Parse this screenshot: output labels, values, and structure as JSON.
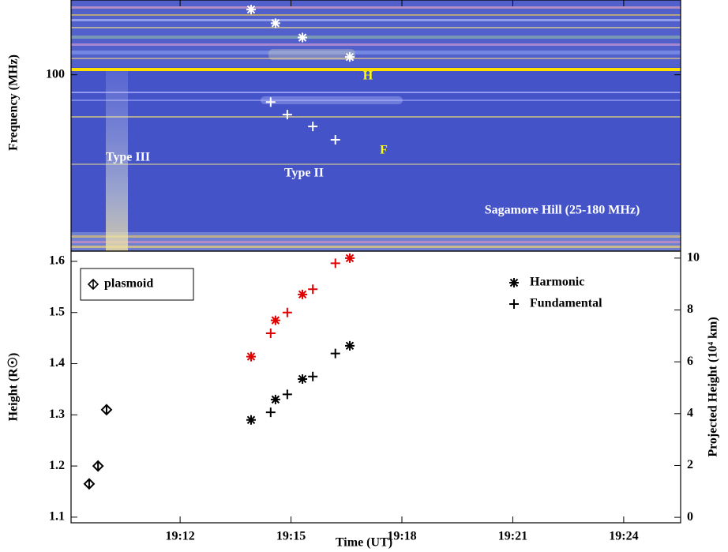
{
  "chart_data": [
    {
      "type": "spectrogram",
      "ylabel": "Frequency (MHz)",
      "log_y": true,
      "ylim": [
        25,
        180
      ],
      "yticks": [
        100
      ],
      "xlim": [
        9.05,
        25.54
      ],
      "series": [
        {
          "marker": "asterisk",
          "color": "#ffffff",
          "x": [
            13.92,
            14.58,
            15.31,
            16.59
          ],
          "values": [
            167,
            150,
            134,
            115
          ]
        },
        {
          "marker": "cross",
          "color": "#ffffff",
          "x": [
            14.45,
            14.9,
            15.59,
            16.2
          ],
          "values": [
            80.7,
            73.1,
            66.6,
            60.0
          ]
        }
      ],
      "annotations": [
        {
          "text": "H",
          "color": "#ffff00"
        },
        {
          "text": "F",
          "color": "#ffff00"
        },
        {
          "text": "Type III",
          "color": "#ffffff"
        },
        {
          "text": "Type II",
          "color": "#ffffff"
        },
        {
          "text": "Sagamore Hill (25-180 MHz)",
          "color": "#ffffff"
        }
      ]
    },
    {
      "type": "scatter",
      "xlabel": "Time (UT)",
      "ylabel": "Height (R☉)",
      "y2label": "Projected Height (10⁴ km)",
      "xlim": [
        9.05,
        25.54
      ],
      "xticks": [
        {
          "value": 12,
          "label": "19:12"
        },
        {
          "value": 15,
          "label": "19:15"
        },
        {
          "value": 18,
          "label": "19:18"
        },
        {
          "value": 21,
          "label": "19:21"
        },
        {
          "value": 24,
          "label": "19:24"
        }
      ],
      "ylim": [
        1.089,
        1.62
      ],
      "yticks": [
        1.1,
        1.2,
        1.3,
        1.4,
        1.5,
        1.6
      ],
      "y2lim": [
        -0.21,
        10.27
      ],
      "y2ticks": [
        0,
        2,
        4,
        6,
        8,
        10
      ],
      "series": [
        {
          "name": "plasmoid",
          "marker": "diamond",
          "color": "#000000",
          "legend": "upper left",
          "x": [
            9.54,
            9.78,
            10.01
          ],
          "values": [
            1.165,
            1.2,
            1.31
          ]
        },
        {
          "name": "Harmonic",
          "marker": "asterisk",
          "color": "#000000",
          "legend": "upper right",
          "x": [
            13.92,
            14.58,
            15.31,
            16.59
          ],
          "values": [
            1.29,
            1.33,
            1.37,
            1.435
          ],
          "projected_color": "#e00000",
          "projected_values": [
            6.2,
            7.6,
            8.6,
            10.0
          ]
        },
        {
          "name": "Fundamental",
          "marker": "cross",
          "color": "#000000",
          "legend": "upper right",
          "x": [
            14.45,
            14.9,
            15.59,
            16.2
          ],
          "values": [
            1.305,
            1.34,
            1.375,
            1.42
          ],
          "projected_color": "#e00000",
          "projected_values": [
            7.1,
            7.9,
            8.8,
            9.8
          ]
        }
      ]
    }
  ]
}
